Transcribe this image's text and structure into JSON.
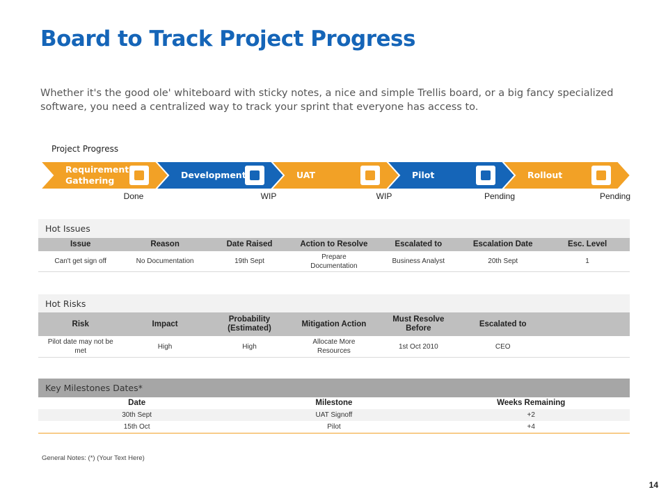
{
  "header": {
    "title": "Board to Track Project Progress",
    "subtitle": "Whether it's the good ole' whiteboard with sticky notes, a nice and simple Trellis board, or a big fancy specialized software, you need a centralized way to track your sprint that everyone has access to."
  },
  "progress": {
    "label": "Project Progress",
    "stages": [
      {
        "name": "Requirement Gathering",
        "status": "Done"
      },
      {
        "name": "Development",
        "status": "WIP"
      },
      {
        "name": "UAT",
        "status": "WIP"
      },
      {
        "name": "Pilot",
        "status": "Pending"
      },
      {
        "name": "Rollout",
        "status": "Pending"
      }
    ]
  },
  "hot_issues": {
    "title": "Hot Issues",
    "columns": [
      "Issue",
      "Reason",
      "Date Raised",
      "Action to Resolve",
      "Escalated to",
      "Escalation Date",
      "Esc. Level"
    ],
    "rows": [
      [
        "Can't get sign off",
        "No Documentation",
        "19th Sept",
        "Prepare Documentation",
        "Business Analyst",
        "20th Sept",
        "1"
      ]
    ]
  },
  "hot_risks": {
    "title": "Hot Risks",
    "columns": [
      "Risk",
      "Impact",
      "Probability (Estimated)",
      "Mitigation Action",
      "Must Resolve Before",
      "Escalated to"
    ],
    "rows": [
      [
        "Pilot date may not be met",
        "High",
        "High",
        "Allocate More Resources",
        "1st Oct 2010",
        "CEO"
      ]
    ]
  },
  "milestones": {
    "title": "Key Milestones Dates*",
    "columns": [
      "Date",
      "Milestone",
      "Weeks Remaining"
    ],
    "rows": [
      [
        "30th Sept",
        "UAT Signoff",
        "+2"
      ],
      [
        "15th Oct",
        "Pilot",
        "+4"
      ]
    ]
  },
  "notes": "General Notes: (*) (Your Text Here)",
  "page_number": "14"
}
